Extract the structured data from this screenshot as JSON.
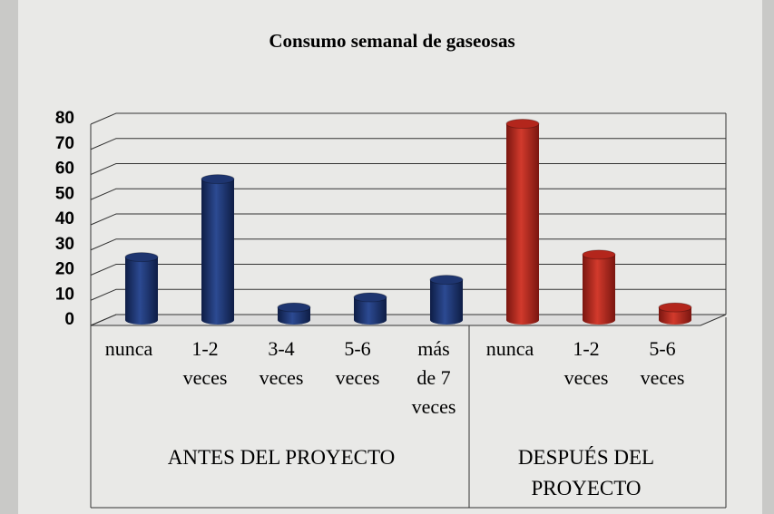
{
  "chart_data": {
    "type": "bar",
    "title": "Consumo semanal de gaseosas",
    "categories": [
      [
        "nunca"
      ],
      [
        "1-2",
        "veces"
      ],
      [
        "3-4",
        "veces"
      ],
      [
        "5-6",
        "veces"
      ],
      [
        "más",
        "de 7",
        "veces"
      ],
      [
        "nunca"
      ],
      [
        "1-2",
        "veces"
      ],
      [
        "5-6",
        "veces"
      ]
    ],
    "series": [
      {
        "name": "ANTES DEL PROYECTO",
        "color": "#1e3570",
        "values": [
          25,
          56,
          5,
          9,
          16,
          null,
          null,
          null
        ]
      },
      {
        "name": "DESPUÉS DEL PROYECTO",
        "color": "#b3261c",
        "values": [
          null,
          null,
          null,
          null,
          null,
          78,
          26,
          5
        ]
      }
    ],
    "ylim": [
      0,
      80
    ],
    "yticks": [
      0,
      10,
      20,
      30,
      40,
      50,
      60,
      70,
      80
    ],
    "grid": true
  }
}
